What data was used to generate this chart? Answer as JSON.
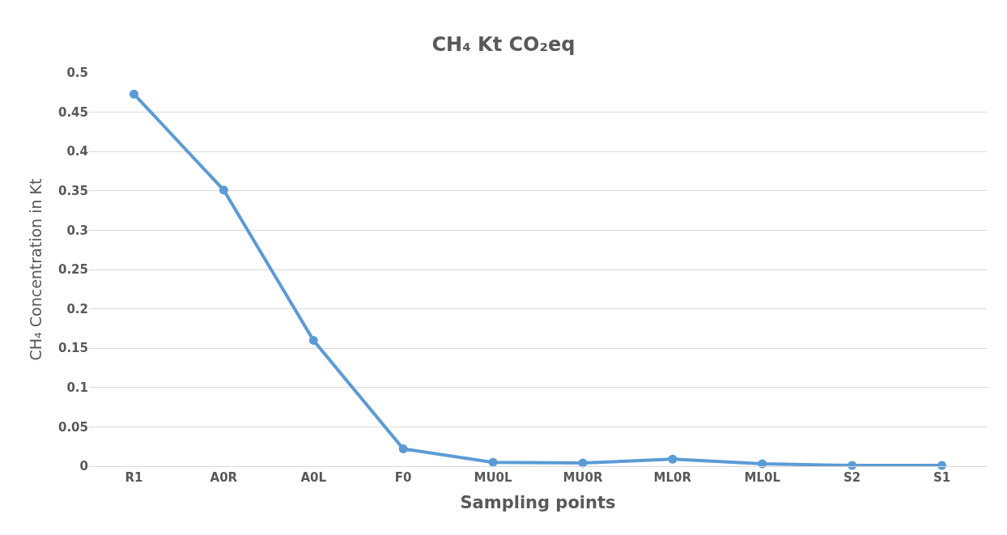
{
  "chart_data": {
    "type": "line",
    "title": "CH₄ Kt CO₂eq",
    "xlabel": "Sampling points",
    "ylabel": "CH₄ Concentration in Kt",
    "categories": [
      "R1",
      "A0R",
      "A0L",
      "F0",
      "MU0L",
      "MU0R",
      "ML0R",
      "ML0L",
      "S2",
      "S1"
    ],
    "series": [
      {
        "color": "#5b9bd5",
        "values": [
          0.473,
          0.351,
          0.16,
          0.022,
          0.005,
          0.004,
          0.009,
          0.003,
          0.001,
          0.001
        ]
      }
    ],
    "ylim": [
      0,
      0.5
    ],
    "yticks": [
      0,
      0.05,
      0.1,
      0.15,
      0.2,
      0.25,
      0.3,
      0.35,
      0.4,
      0.45,
      0.5
    ],
    "grid": "y",
    "marker": "circle",
    "line_style": "solid"
  }
}
